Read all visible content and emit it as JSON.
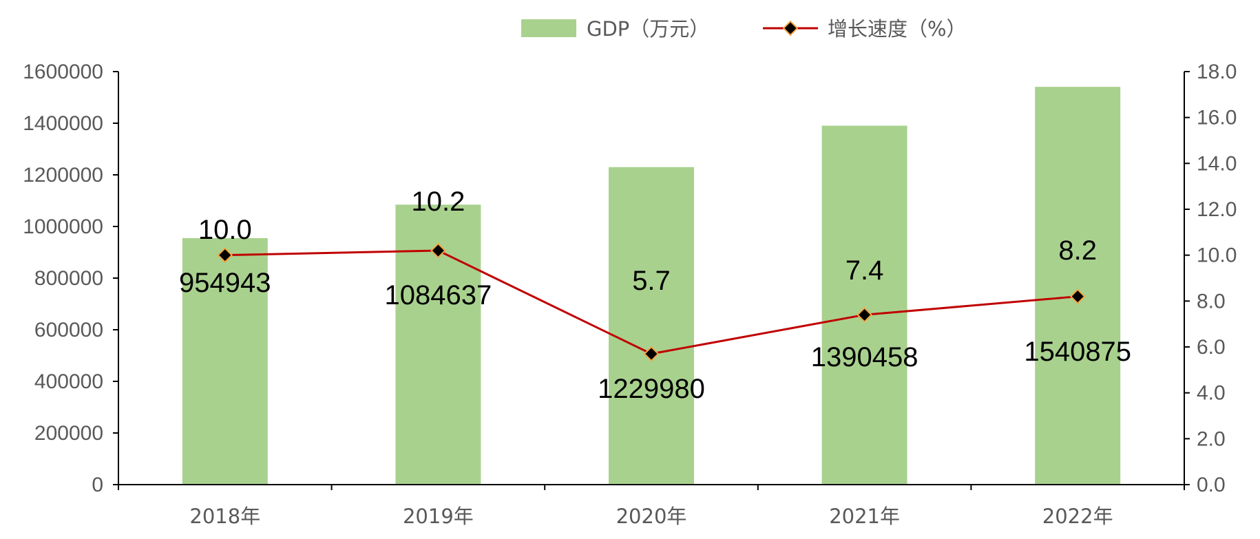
{
  "chart_data": {
    "type": "bar",
    "categories": [
      "2018年",
      "2019年",
      "2020年",
      "2021年",
      "2022年"
    ],
    "series": [
      {
        "name": "GDP（万元）",
        "type": "bar",
        "axis": "left",
        "values": [
          954943,
          1084637,
          1229980,
          1390458,
          1540875
        ],
        "labels": [
          "954943",
          "1084637",
          "1229980",
          "1390458",
          "1540875"
        ]
      },
      {
        "name": "增长速度（%）",
        "type": "line",
        "axis": "right",
        "values": [
          10.0,
          10.2,
          5.7,
          7.4,
          8.2
        ],
        "labels": [
          "10.0",
          "10.2",
          "5.7",
          "7.4",
          "8.2"
        ]
      }
    ],
    "y_left": {
      "ylim": [
        0,
        1600000
      ],
      "ticks": [
        "0",
        "200000",
        "400000",
        "600000",
        "800000",
        "1000000",
        "1200000",
        "1400000",
        "1600000"
      ]
    },
    "y_right": {
      "ylim": [
        0,
        18
      ],
      "ticks": [
        "0.0",
        "2.0",
        "4.0",
        "6.0",
        "8.0",
        "10.0",
        "12.0",
        "14.0",
        "16.0",
        "18.0"
      ]
    },
    "grid": false,
    "legend": "top-center",
    "colors": {
      "bar": "#a9d18e",
      "line": "#c00000",
      "marker_fill": "#000000",
      "marker_edge": "#f4a442",
      "axis": "#000000"
    }
  }
}
